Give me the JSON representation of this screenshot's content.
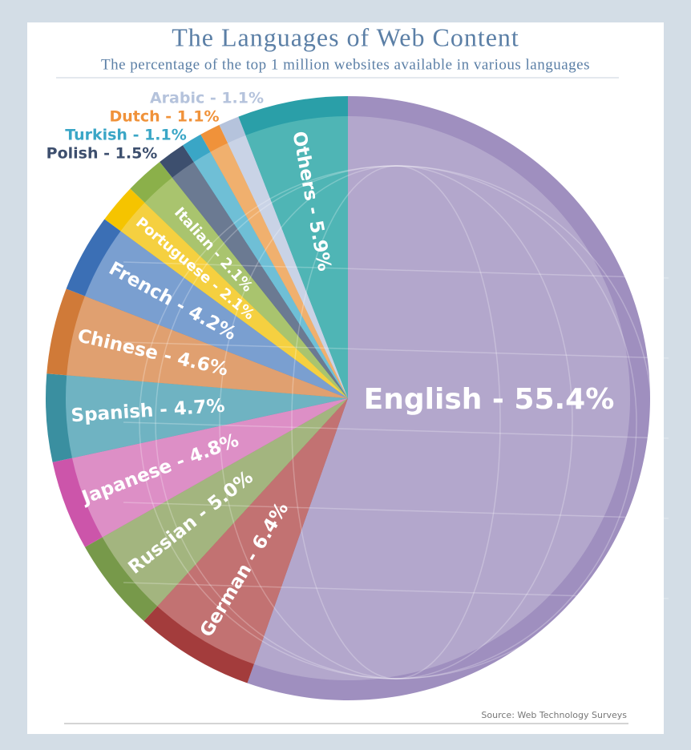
{
  "chart_data": {
    "type": "pie",
    "title": "The Languages of Web Content",
    "subtitle": "The percentage of the top 1 million websites available in various languages",
    "source": "Source: Web Technology Surveys",
    "values": [
      55.4,
      6.4,
      5.0,
      4.8,
      4.7,
      4.6,
      4.2,
      2.1,
      2.1,
      1.5,
      1.1,
      1.1,
      1.1,
      5.9
    ],
    "value_labels": [
      "English - 55.4%",
      "German - 6.4%",
      "Russian - 5.0%",
      "Japanese - 4.8%",
      "Spanish - 4.7%",
      "Chinese - 4.6%",
      "French - 4.2%",
      "Portuguese - 2.1%",
      "Italian - 2.1%",
      "Polish - 1.5%",
      "Turkish - 1.1%",
      "Dutch - 1.1%",
      "Arabic - 1.1%",
      "Others - 5.9%"
    ],
    "colors": [
      "#9f8fbf",
      "#a33c3c",
      "#77994a",
      "#cc55aa",
      "#3a8fa0",
      "#d07a38",
      "#3b6fb5",
      "#f5c400",
      "#8bb04a",
      "#3d4f6e",
      "#3aa6c6",
      "#f0923a",
      "#b5c3dc",
      "#2a9fa8"
    ],
    "inner_colors": [
      "#b3a7cc",
      "#c27272",
      "#a3b57f",
      "#dd8fc6",
      "#6fb3c2",
      "#e0a070",
      "#7a9fd0",
      "#f5d040",
      "#a9c46e",
      "#6b7a92",
      "#6fbfd6",
      "#f0b06e",
      "#c9d3e6",
      "#4fb5b5"
    ]
  }
}
